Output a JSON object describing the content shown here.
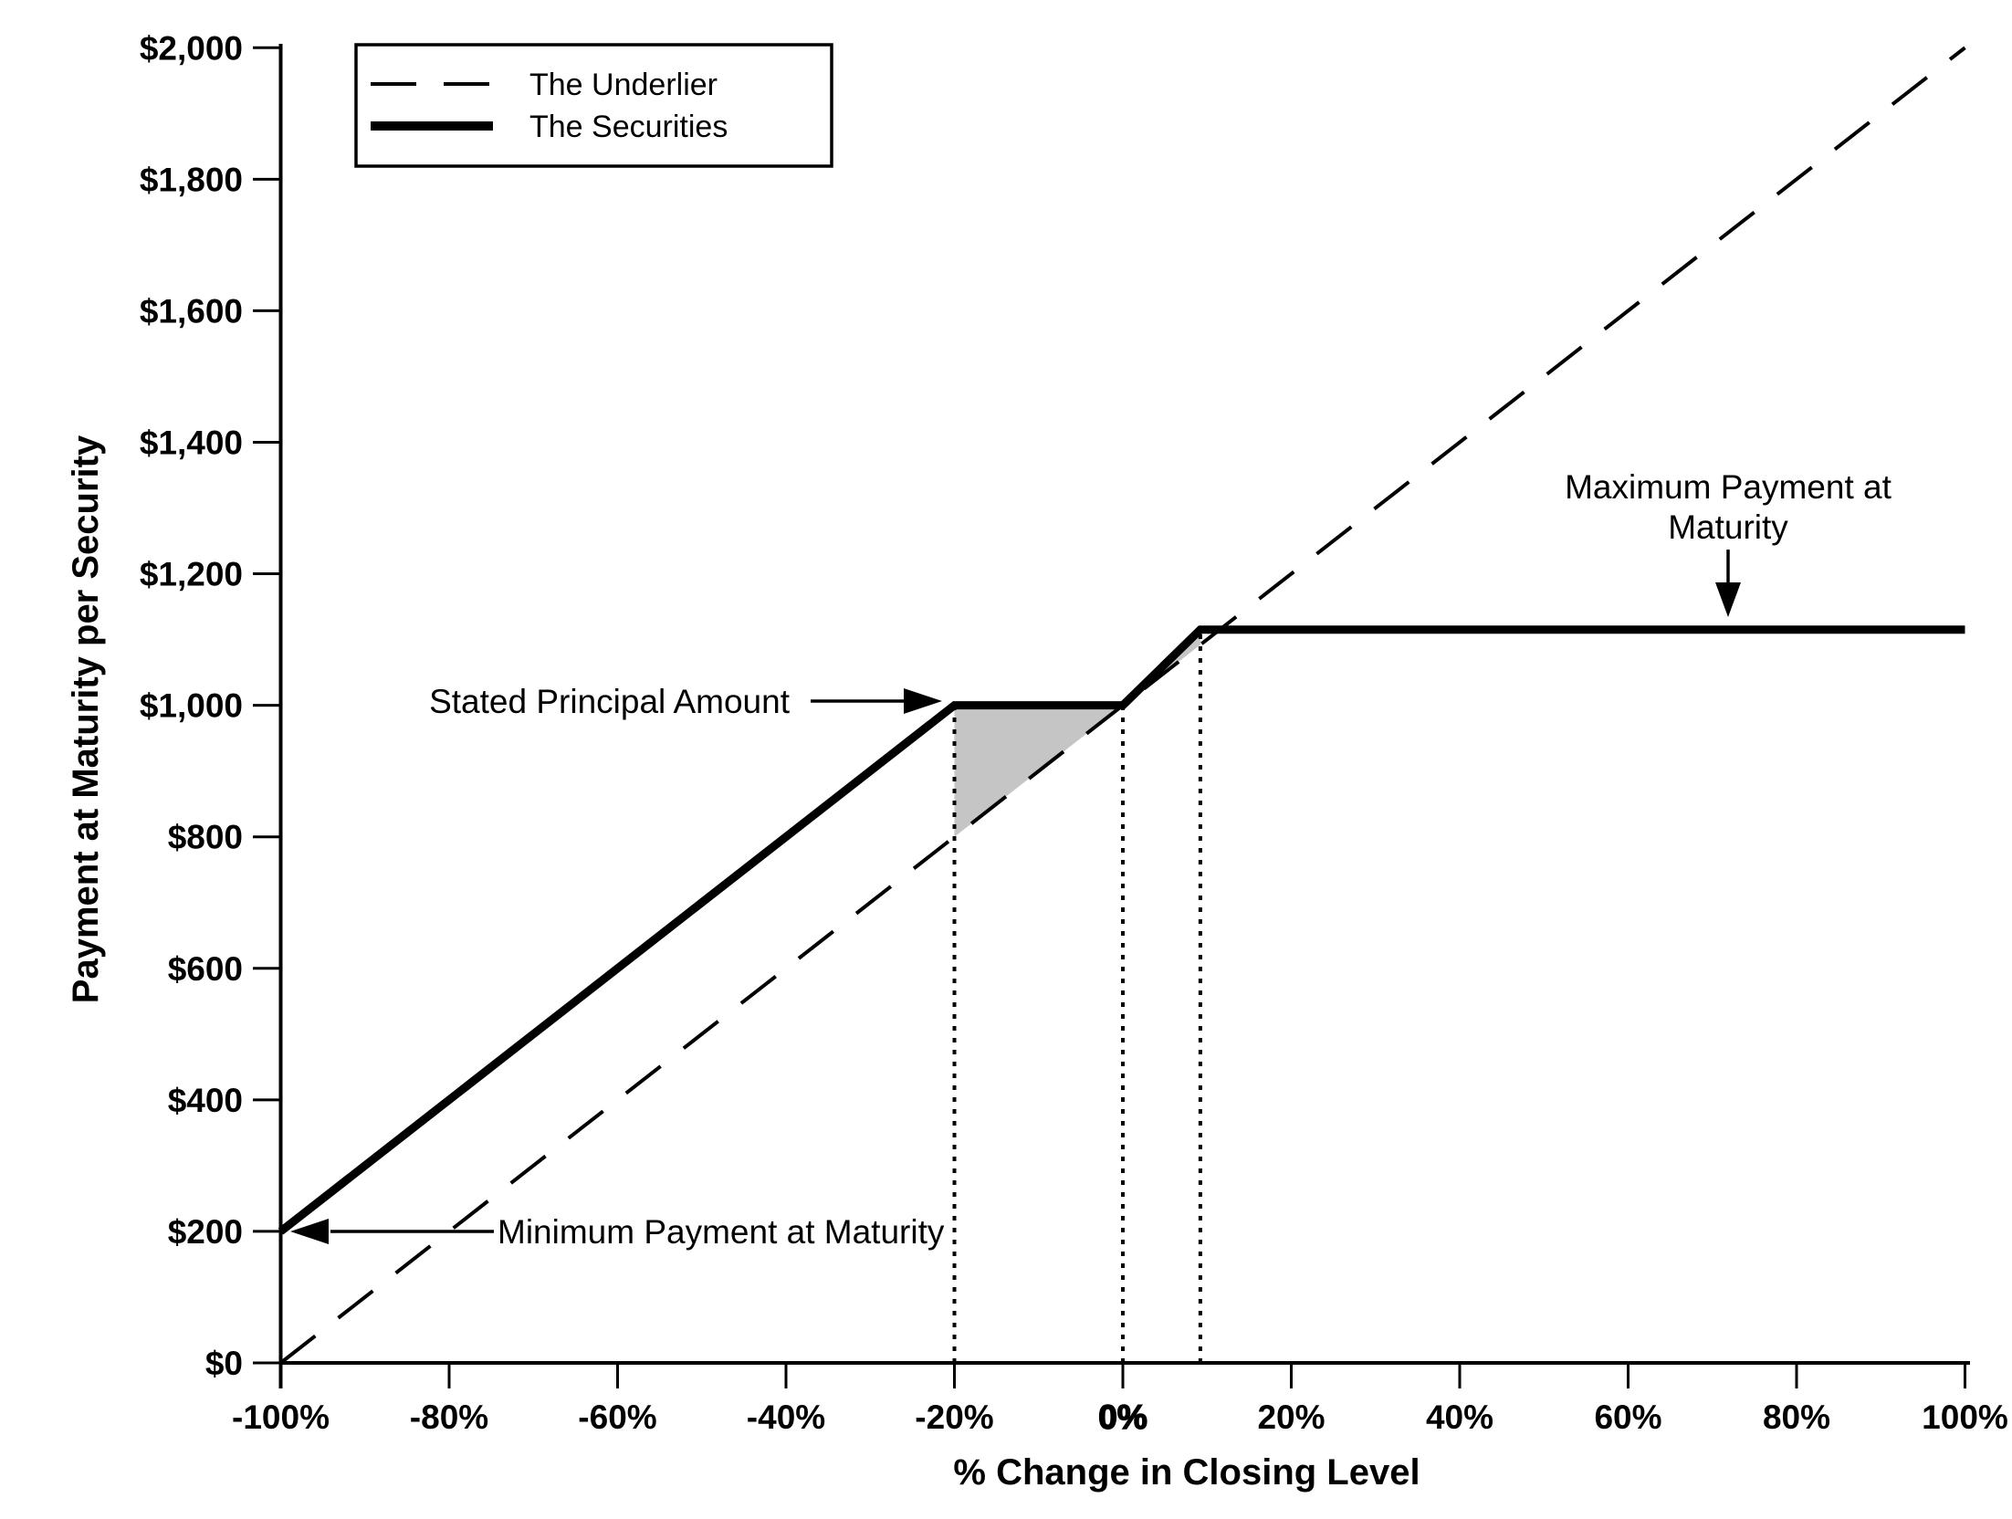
{
  "figure": {
    "background": "#ffffff",
    "ink": "#000000",
    "shade_color": "#c5c5c5"
  },
  "chart_data": {
    "type": "line",
    "title": "",
    "xlabel": "% Change in Closing Level",
    "ylabel": "Payment at Maturity per Security",
    "xlim": [
      -100,
      100
    ],
    "ylim": [
      0,
      2000
    ],
    "grid": false,
    "legend_position": "top-left",
    "x_ticks": [
      {
        "value": -100,
        "label": "-100%"
      },
      {
        "value": -80,
        "label": "-80%"
      },
      {
        "value": -60,
        "label": "-60%"
      },
      {
        "value": -40,
        "label": "-40%"
      },
      {
        "value": -20,
        "label": "-20%"
      },
      {
        "value": 0,
        "label": "0%",
        "emphasized": true
      },
      {
        "value": 20,
        "label": "20%"
      },
      {
        "value": 40,
        "label": "40%"
      },
      {
        "value": 60,
        "label": "60%"
      },
      {
        "value": 80,
        "label": "80%"
      },
      {
        "value": 100,
        "label": "100%"
      }
    ],
    "y_ticks": [
      {
        "value": 0,
        "label": "$0"
      },
      {
        "value": 200,
        "label": "$200"
      },
      {
        "value": 400,
        "label": "$400"
      },
      {
        "value": 600,
        "label": "$600"
      },
      {
        "value": 800,
        "label": "$800"
      },
      {
        "value": 1000,
        "label": "$1,000"
      },
      {
        "value": 1200,
        "label": "$1,200"
      },
      {
        "value": 1400,
        "label": "$1,400"
      },
      {
        "value": 1600,
        "label": "$1,600"
      },
      {
        "value": 1800,
        "label": "$1,800"
      },
      {
        "value": 2000,
        "label": "$2,000"
      }
    ],
    "series": [
      {
        "name": "The Underlier",
        "style": "dashed",
        "width": 4,
        "points": [
          [
            -100,
            0
          ],
          [
            100,
            2000
          ]
        ]
      },
      {
        "name": "The Securities",
        "style": "solid",
        "width": 9,
        "points": [
          [
            -100,
            200
          ],
          [
            -20,
            1000
          ],
          [
            0,
            1000
          ],
          [
            9.2,
            1115
          ],
          [
            100,
            1115
          ]
        ]
      }
    ],
    "shaded_regions": [
      {
        "points": [
          [
            -20,
            1000
          ],
          [
            0,
            1000
          ],
          [
            -20,
            800
          ]
        ]
      },
      {
        "points": [
          [
            0,
            1000
          ],
          [
            9.2,
            1115
          ],
          [
            9.2,
            1092
          ]
        ]
      }
    ],
    "reference_verticals": [
      {
        "x": -20,
        "y_top": 1000
      },
      {
        "x": 0,
        "y_top": 1000
      },
      {
        "x": 9.2,
        "y_top": 1115
      }
    ],
    "key_values": {
      "stated_principal_amount": 1000,
      "minimum_payment_at_maturity": 200,
      "maximum_payment_at_maturity": 1115,
      "buffer_level_pct": -20,
      "cap_reached_at_pct": 9.2
    },
    "annotations": [
      {
        "id": "stated-principal",
        "text": [
          "Stated Principal Amount"
        ],
        "arrow": "right",
        "target": [
          -20,
          1000
        ]
      },
      {
        "id": "minimum-payment",
        "text": [
          "Minimum Payment at Maturity"
        ],
        "arrow": "left",
        "target": [
          -100,
          200
        ]
      },
      {
        "id": "maximum-payment",
        "text": [
          "Maximum Payment at",
          "Maturity"
        ],
        "arrow": "down",
        "target": [
          72,
          1115
        ]
      }
    ]
  }
}
